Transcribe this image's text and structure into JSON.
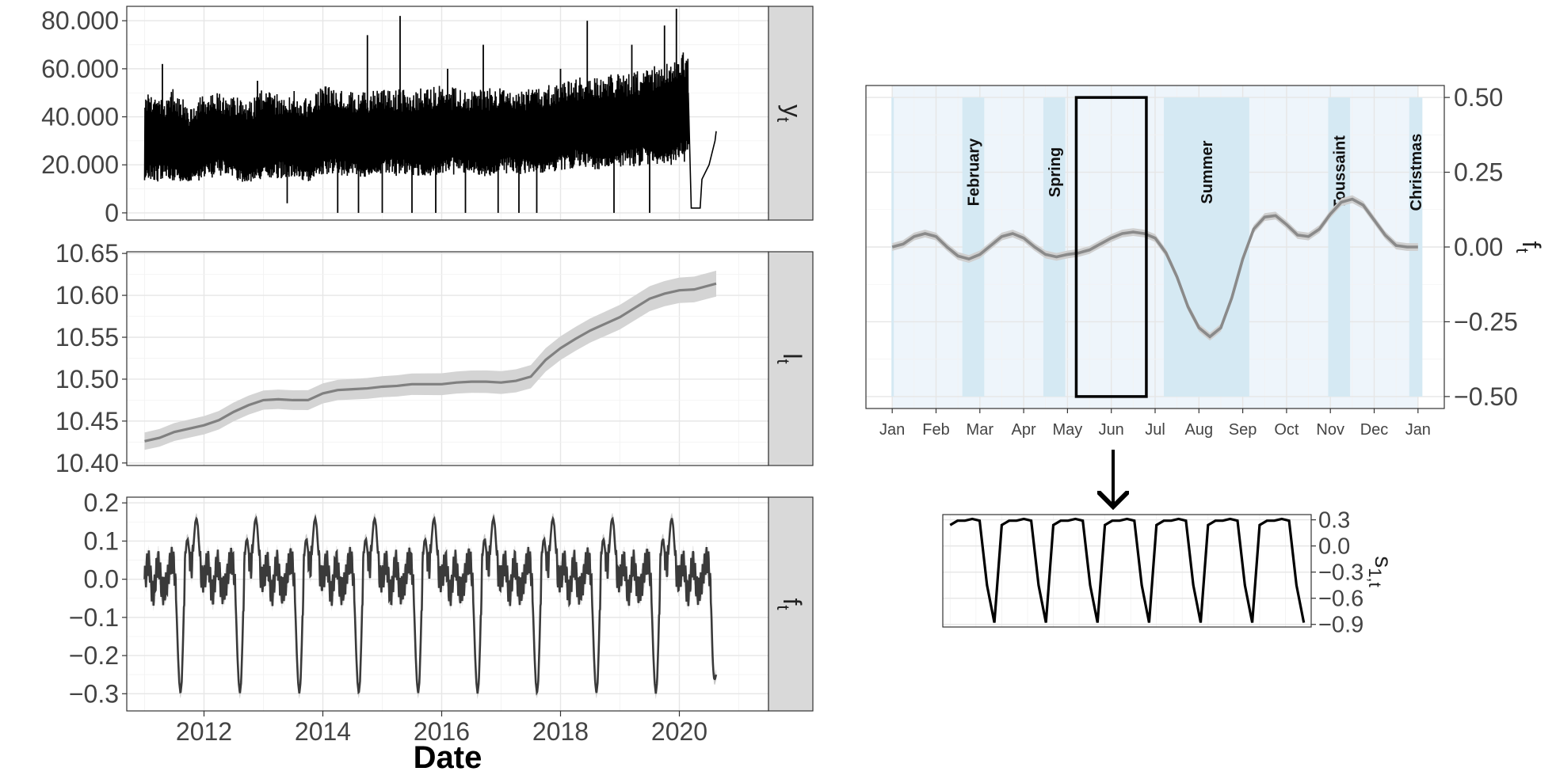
{
  "chart_data": [
    {
      "type": "line",
      "panel": "y_t",
      "strip_label": {
        "base": "y",
        "sub": "t"
      },
      "xlabel": "Date",
      "xlim": [
        2010.7,
        2021.5
      ],
      "x_ticks": [
        2012,
        2014,
        2016,
        2018,
        2020
      ],
      "x_tick_labels": [
        "2012",
        "2014",
        "2016",
        "2018",
        "2020"
      ],
      "ylim": [
        -3000,
        86000
      ],
      "y_ticks": [
        0,
        20000,
        40000,
        60000,
        80000
      ],
      "y_tick_labels": [
        "0",
        "20.000",
        "40.000",
        "60.000",
        "80.000"
      ],
      "series": [
        {
          "color": "#000000",
          "envelope_x": [
            2011.0,
            2011.25,
            2011.5,
            2011.75,
            2012.0,
            2012.25,
            2012.5,
            2012.75,
            2013.0,
            2013.25,
            2013.5,
            2013.75,
            2014.0,
            2014.25,
            2014.5,
            2014.75,
            2015.0,
            2015.25,
            2015.5,
            2015.75,
            2016.0,
            2016.25,
            2016.5,
            2016.75,
            2017.0,
            2017.25,
            2017.5,
            2017.75,
            2018.0,
            2018.25,
            2018.5,
            2018.75,
            2019.0,
            2019.25,
            2019.5,
            2019.75,
            2020.0,
            2020.15
          ],
          "envelope_high": [
            50000,
            48000,
            52000,
            44000,
            50000,
            51000,
            49000,
            46000,
            52000,
            50000,
            51000,
            48000,
            53000,
            52000,
            51000,
            50000,
            53000,
            52000,
            51000,
            53000,
            53000,
            52000,
            51000,
            52000,
            52000,
            51000,
            52000,
            53000,
            55000,
            57000,
            56000,
            58000,
            58000,
            59000,
            60000,
            64000,
            68000,
            66000
          ],
          "envelope_low": [
            12000,
            11000,
            11000,
            12000,
            12000,
            13000,
            12000,
            11000,
            13000,
            12000,
            13000,
            12000,
            14000,
            13000,
            14000,
            13000,
            14000,
            13000,
            14000,
            14000,
            14000,
            14000,
            15000,
            14000,
            15000,
            14000,
            15000,
            15000,
            16000,
            16000,
            16000,
            17000,
            17000,
            17000,
            18000,
            18000,
            19000,
            19000
          ],
          "spikes": [
            [
              2011.3,
              62000
            ],
            [
              2012.9,
              55000
            ],
            [
              2013.4,
              4000
            ],
            [
              2014.25,
              0
            ],
            [
              2014.6,
              0
            ],
            [
              2014.75,
              74000
            ],
            [
              2015.0,
              0
            ],
            [
              2015.3,
              82000
            ],
            [
              2015.5,
              0
            ],
            [
              2015.9,
              0
            ],
            [
              2016.1,
              60000
            ],
            [
              2016.4,
              0
            ],
            [
              2016.7,
              70000
            ],
            [
              2016.95,
              0
            ],
            [
              2017.3,
              0
            ],
            [
              2017.6,
              0
            ],
            [
              2018.0,
              60000
            ],
            [
              2018.45,
              80000
            ],
            [
              2018.9,
              0
            ],
            [
              2019.2,
              70000
            ],
            [
              2019.5,
              0
            ],
            [
              2019.75,
              78000
            ],
            [
              2019.95,
              85000
            ]
          ],
          "tail": [
            [
              2020.15,
              50000
            ],
            [
              2020.2,
              2000
            ],
            [
              2020.35,
              2000
            ],
            [
              2020.38,
              14000
            ],
            [
              2020.5,
              20000
            ],
            [
              2020.6,
              30000
            ],
            [
              2020.62,
              34000
            ]
          ]
        }
      ]
    },
    {
      "type": "line",
      "panel": "l_t",
      "strip_label": {
        "base": "l",
        "sub": "t"
      },
      "xlim": [
        2010.7,
        2021.5
      ],
      "ylim": [
        10.397,
        10.652
      ],
      "y_ticks": [
        10.4,
        10.45,
        10.5,
        10.55,
        10.6,
        10.65
      ],
      "y_tick_labels": [
        "10.40",
        "10.45",
        "10.50",
        "10.55",
        "10.60",
        "10.65"
      ],
      "series": [
        {
          "color": "#808080",
          "band_color": "#d4d4d4",
          "x": [
            2011.0,
            2011.25,
            2011.5,
            2011.75,
            2012.0,
            2012.25,
            2012.5,
            2012.75,
            2013.0,
            2013.25,
            2013.5,
            2013.75,
            2014.0,
            2014.25,
            2014.5,
            2014.75,
            2015.0,
            2015.25,
            2015.5,
            2015.75,
            2016.0,
            2016.25,
            2016.5,
            2016.75,
            2017.0,
            2017.25,
            2017.5,
            2017.75,
            2018.0,
            2018.25,
            2018.5,
            2018.75,
            2019.0,
            2019.25,
            2019.5,
            2019.75,
            2020.0,
            2020.25,
            2020.62
          ],
          "y": [
            10.426,
            10.43,
            10.437,
            10.441,
            10.445,
            10.451,
            10.461,
            10.469,
            10.475,
            10.476,
            10.475,
            10.475,
            10.483,
            10.487,
            10.488,
            10.489,
            10.491,
            10.492,
            10.494,
            10.494,
            10.494,
            10.496,
            10.497,
            10.497,
            10.496,
            10.498,
            10.503,
            10.523,
            10.537,
            10.548,
            10.558,
            10.566,
            10.574,
            10.585,
            10.596,
            10.602,
            10.606,
            10.607,
            10.614
          ],
          "band_halfwidth": 0.013
        }
      ]
    },
    {
      "type": "line",
      "panel": "f_t",
      "strip_label": {
        "base": "f",
        "sub": "t"
      },
      "xlim": [
        2010.7,
        2021.5
      ],
      "ylim": [
        -0.345,
        0.215
      ],
      "y_ticks": [
        -0.3,
        -0.2,
        -0.1,
        0.0,
        0.1,
        0.2
      ],
      "y_tick_labels": [
        "−0.3",
        "−0.2",
        "−0.1",
        "0.0",
        "0.1",
        "0.2"
      ],
      "x_start": 2011.0,
      "x_end": 2020.62,
      "series": [
        {
          "color": "#3a3a3a",
          "band_color": "#c8c8c8",
          "band_halfwidth": 0.015
        }
      ]
    },
    {
      "type": "line",
      "panel": "annual profile f_t",
      "strip_label": {
        "base": "f",
        "sub": "t"
      },
      "x_categories": [
        "Jan",
        "Feb",
        "Mar",
        "Apr",
        "May",
        "Jun",
        "Jul",
        "Aug",
        "Sep",
        "Oct",
        "Nov",
        "Dec",
        "Jan"
      ],
      "xlim": [
        -0.6,
        12.6
      ],
      "ylim": [
        -0.54,
        0.54
      ],
      "y_ticks": [
        -0.5,
        -0.25,
        0.0,
        0.25,
        0.5
      ],
      "y_tick_labels": [
        "−0.50",
        "−0.25",
        "0.00",
        "0.25",
        "0.50"
      ],
      "background_span": [
        0.0,
        12.0
      ],
      "holidays": [
        {
          "label": "February",
          "start": 1.6,
          "end": 2.1
        },
        {
          "label": "Spring",
          "start": 3.45,
          "end": 3.95
        },
        {
          "label": "Summer",
          "start": 6.2,
          "end": 8.15
        },
        {
          "label": "Toussaint",
          "start": 9.95,
          "end": 10.45
        },
        {
          "label": "Christmas",
          "start": 11.8,
          "end": 12.1
        }
      ],
      "highlight_box": {
        "x": [
          4.2,
          5.8
        ],
        "y": [
          -0.5,
          0.5
        ]
      },
      "series": [
        {
          "color": "#8a8a8a",
          "band_color": "#cfcfcf",
          "band_halfwidth": 0.013,
          "x": [
            0.0,
            0.25,
            0.5,
            0.75,
            1.0,
            1.25,
            1.5,
            1.75,
            2.0,
            2.25,
            2.5,
            2.75,
            3.0,
            3.25,
            3.5,
            3.75,
            4.0,
            4.25,
            4.5,
            4.75,
            5.0,
            5.25,
            5.5,
            5.75,
            6.0,
            6.25,
            6.5,
            6.75,
            7.0,
            7.25,
            7.5,
            7.75,
            8.0,
            8.25,
            8.5,
            8.75,
            9.0,
            9.25,
            9.5,
            9.75,
            10.0,
            10.25,
            10.5,
            10.75,
            11.0,
            11.25,
            11.5,
            11.75,
            12.0
          ],
          "y": [
            0.0,
            0.01,
            0.035,
            0.045,
            0.035,
            0.0,
            -0.03,
            -0.04,
            -0.025,
            0.005,
            0.035,
            0.045,
            0.03,
            0.0,
            -0.025,
            -0.033,
            -0.025,
            -0.02,
            -0.01,
            0.01,
            0.03,
            0.045,
            0.05,
            0.045,
            0.03,
            -0.02,
            -0.1,
            -0.2,
            -0.27,
            -0.3,
            -0.27,
            -0.17,
            -0.04,
            0.06,
            0.1,
            0.105,
            0.075,
            0.04,
            0.035,
            0.06,
            0.11,
            0.15,
            0.16,
            0.14,
            0.09,
            0.04,
            0.005,
            0.0,
            0.0
          ]
        }
      ]
    },
    {
      "type": "line",
      "panel": "s_1,t",
      "strip_label": {
        "base": "s",
        "sub": "1,t"
      },
      "ylim": [
        -0.93,
        0.36
      ],
      "y_ticks": [
        -0.9,
        -0.6,
        -0.3,
        0.0,
        0.3
      ],
      "y_tick_labels": [
        "−0.9",
        "−0.6",
        "−0.3",
        "0.0",
        "0.3"
      ],
      "cycles": 7,
      "cycle_shape": [
        0.24,
        0.29,
        0.29,
        0.31,
        0.29,
        -0.45,
        -0.88
      ],
      "series": [
        {
          "color": "#000000"
        }
      ]
    }
  ]
}
